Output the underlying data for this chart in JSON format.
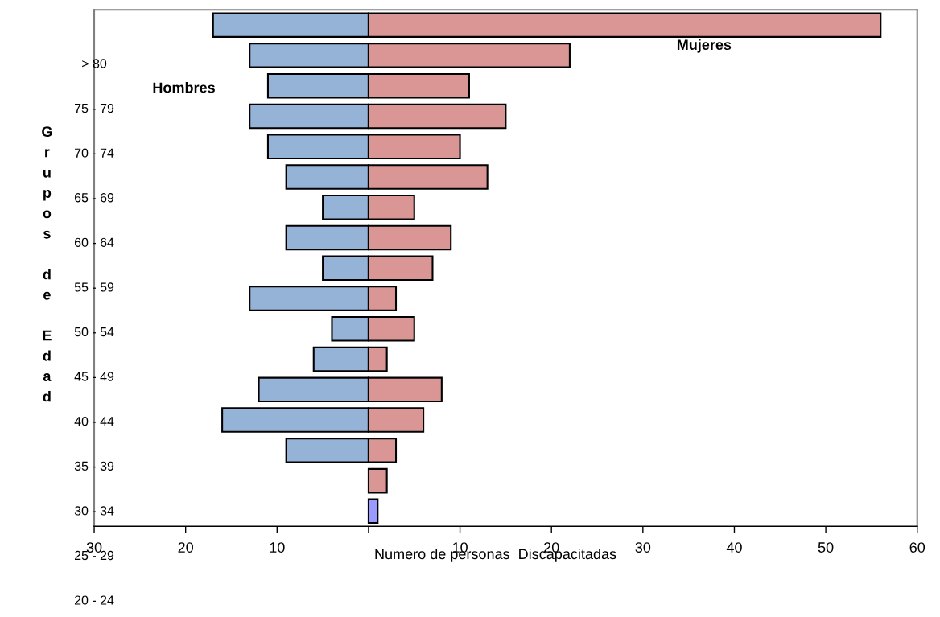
{
  "chart_data": {
    "type": "bar",
    "orientation": "horizontal",
    "stacked": true,
    "xlabel": "Numero de personas  Discapacitadas",
    "ylabel": "Grupos de Edad",
    "categories": [
      null,
      null,
      null,
      null,
      null,
      null,
      null,
      null,
      null,
      null,
      null,
      null,
      null,
      null,
      null,
      null,
      null
    ],
    "series": [
      {
        "name": "Hombres",
        "color": "#95b3d7",
        "values": [
          -17,
          -13,
          -11,
          -13,
          -11,
          -9,
          -5,
          -9,
          -5,
          -13,
          -4,
          -6,
          -12,
          -16,
          -9,
          null,
          null
        ]
      },
      {
        "name": "Mujeres",
        "colors": [
          "#d99694",
          "#d99694",
          "#d99694",
          "#d99694",
          "#d99694",
          "#d99694",
          "#d99694",
          "#d99694",
          "#d99694",
          "#d99694",
          "#d99694",
          "#d99694",
          "#d99694",
          "#d99694",
          "#d99694",
          "#d99694",
          "#9999ff"
        ],
        "values": [
          56,
          22,
          11,
          15,
          10,
          13,
          5,
          9,
          7,
          3,
          5,
          2,
          8,
          6,
          3,
          2,
          1
        ]
      }
    ],
    "xlim": [
      -30,
      60
    ],
    "xticks": [
      {
        "value": -30,
        "label": "30"
      },
      {
        "value": -20,
        "label": "20"
      },
      {
        "value": -10,
        "label": "10"
      },
      {
        "value": 0,
        "label": null
      },
      10,
      20,
      30,
      40,
      50,
      60
    ],
    "annotations": [
      "> 80",
      "75 - 79",
      "70 - 74",
      "65 - 69",
      "60 - 64",
      "55 - 59",
      "50 - 54",
      "45 - 49",
      "40 - 44",
      "35 - 39",
      "30 - 34",
      "25 - 29",
      "20 - 24"
    ],
    "grid": false,
    "legend": false
  }
}
